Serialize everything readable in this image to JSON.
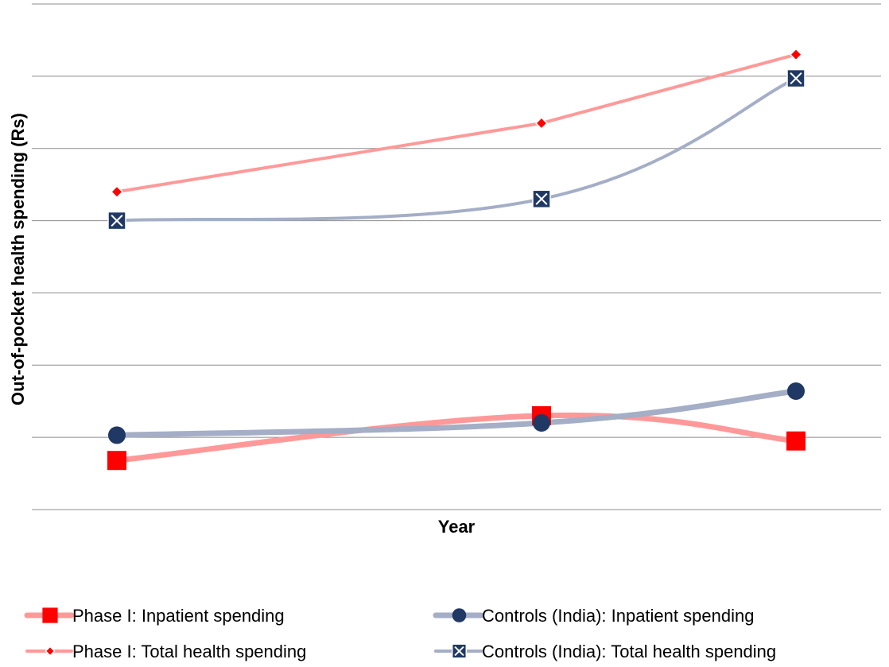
{
  "chart_data": {
    "type": "line",
    "title": "",
    "xlabel": "Year",
    "ylabel": "Out-of-pocket health spending (Rs)",
    "categories": [
      "",
      "",
      ""
    ],
    "ylim": [
      0,
      7
    ],
    "grid": true,
    "gridlines": [
      0,
      1,
      2,
      3,
      4,
      5,
      6,
      7
    ],
    "legend_position": "bottom",
    "series": [
      {
        "name": "Phase I: Inpatient spending",
        "values": [
          0.68,
          1.3,
          0.95
        ],
        "color": "#ff9999",
        "marker_color": "#ff0000",
        "marker": "square",
        "smooth": true,
        "thick": true
      },
      {
        "name": "Controls (India): Inpatient spending",
        "values": [
          1.03,
          1.2,
          1.64
        ],
        "color": "#a4aec6",
        "marker_color": "#1f3864",
        "marker": "circle",
        "smooth": true,
        "thick": true
      },
      {
        "name": "Phase I: Total health spending",
        "values": [
          4.4,
          5.35,
          6.3
        ],
        "color": "#ff9999",
        "marker_color": "#ff0000",
        "marker": "diamond",
        "smooth": false,
        "thick": false
      },
      {
        "name": "Controls (India): Total health spending",
        "values": [
          4.0,
          4.3,
          5.97
        ],
        "color": "#a4aec6",
        "marker_color": "#1f3864",
        "marker": "xsquare",
        "smooth": true,
        "thick": false
      }
    ]
  }
}
